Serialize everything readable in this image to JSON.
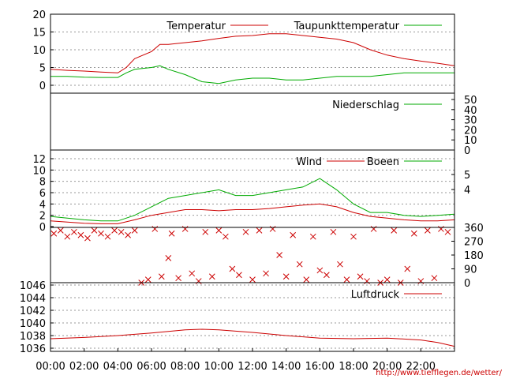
{
  "footer_url": "http://www.tiefflegen.de/wetter/",
  "x_axis": {
    "labels": [
      "00:00",
      "02:00",
      "04:00",
      "06:00",
      "08:00",
      "10:00",
      "12:00",
      "14:00",
      "16:00",
      "18:00",
      "20:00",
      "22:00"
    ],
    "range_hours": [
      0,
      24
    ]
  },
  "colors": {
    "red": "#cc0000",
    "green": "#00aa00",
    "grid": "#999999"
  },
  "chart_data": [
    {
      "type": "line",
      "panel": "temperature",
      "ylim": [
        -2,
        20
      ],
      "yticks": [
        "0",
        "5",
        "10",
        "15",
        "20"
      ],
      "grid": true,
      "legend_placement": "top-right",
      "x": [
        0,
        1,
        2,
        3,
        4,
        4.5,
        5,
        6,
        6.5,
        7,
        8,
        9,
        10,
        11,
        12,
        13,
        14,
        15,
        16,
        17,
        18,
        19,
        20,
        21,
        22,
        23,
        24
      ],
      "series": [
        {
          "name": "Temperatur",
          "color": "red",
          "values": [
            4.5,
            4.2,
            4.0,
            3.7,
            3.5,
            5.0,
            7.5,
            9.5,
            11.5,
            11.5,
            12.0,
            12.5,
            13.2,
            13.8,
            14.0,
            14.5,
            14.5,
            14.0,
            13.5,
            13.0,
            12.0,
            10.0,
            8.5,
            7.5,
            6.8,
            6.2,
            5.5
          ]
        },
        {
          "name": "Taupunkttemperatur",
          "color": "green",
          "values": [
            2.5,
            2.5,
            2.3,
            2.2,
            2.2,
            3.5,
            4.5,
            5.0,
            5.5,
            4.5,
            3.0,
            1.0,
            0.5,
            1.5,
            2.0,
            2.0,
            1.5,
            1.5,
            2.0,
            2.5,
            2.5,
            2.5,
            3.0,
            3.5,
            3.5,
            3.5,
            3.5
          ]
        }
      ]
    },
    {
      "type": "line",
      "panel": "precipitation",
      "ylim": [
        0,
        60
      ],
      "yticks_right": [
        "0",
        "10",
        "20",
        "30",
        "40",
        "50"
      ],
      "grid": false,
      "legend_placement": "top-right",
      "x": [
        0,
        24
      ],
      "series": [
        {
          "name": "Niederschlag",
          "color": "green",
          "values": [
            0,
            0
          ]
        }
      ]
    },
    {
      "type": "line",
      "panel": "wind",
      "ylim": [
        0,
        12
      ],
      "yticks": [
        "0",
        "2",
        "4",
        "6",
        "8",
        "10",
        "12"
      ],
      "yticks_right": [
        "4",
        "5"
      ],
      "grid": true,
      "legend_placement": "top-right",
      "x": [
        0,
        1,
        2,
        3,
        4,
        5,
        6,
        7,
        8,
        9,
        10,
        11,
        12,
        13,
        14,
        15,
        16,
        17,
        18,
        19,
        20,
        21,
        22,
        23,
        24
      ],
      "series": [
        {
          "name": "Wind",
          "color": "red",
          "values": [
            1,
            0.8,
            0.6,
            0.5,
            0.5,
            1.2,
            2.0,
            2.5,
            3.0,
            3.0,
            2.8,
            3.0,
            3.0,
            3.2,
            3.5,
            3.8,
            4.0,
            3.5,
            2.5,
            1.8,
            1.5,
            1.2,
            1.0,
            1.0,
            1.2
          ]
        },
        {
          "name": "Boeen",
          "color": "green",
          "values": [
            1.8,
            1.5,
            1.2,
            1.0,
            1.0,
            2.0,
            3.5,
            5.0,
            5.5,
            6.0,
            6.5,
            5.5,
            5.5,
            6.0,
            6.5,
            7.0,
            8.5,
            6.5,
            4.0,
            2.5,
            2.5,
            2.0,
            1.8,
            2.0,
            2.2
          ]
        }
      ]
    },
    {
      "type": "scatter",
      "panel": "wind_direction",
      "ylim": [
        0,
        360
      ],
      "yticks_right": [
        "0",
        "90",
        "180",
        "270",
        "360"
      ],
      "marker": "x",
      "color": "red",
      "x": [
        0.2,
        0.6,
        1.0,
        1.4,
        1.8,
        2.2,
        2.6,
        3.0,
        3.4,
        3.8,
        4.2,
        4.6,
        5.0,
        5.4,
        5.8,
        6.2,
        6.6,
        7.0,
        7.2,
        7.6,
        8.0,
        8.4,
        8.8,
        9.2,
        9.6,
        10.0,
        10.4,
        10.8,
        11.2,
        11.6,
        12.0,
        12.4,
        12.8,
        13.2,
        13.6,
        14.0,
        14.4,
        14.8,
        15.2,
        15.6,
        16.0,
        16.4,
        16.8,
        17.2,
        17.6,
        18.0,
        18.4,
        18.8,
        19.2,
        19.6,
        20.0,
        20.4,
        20.8,
        21.2,
        21.6,
        22.0,
        22.4,
        22.8,
        23.2,
        23.6
      ],
      "y": [
        320,
        340,
        300,
        330,
        310,
        290,
        340,
        320,
        300,
        340,
        330,
        310,
        340,
        0,
        20,
        350,
        40,
        160,
        320,
        30,
        350,
        60,
        10,
        330,
        40,
        340,
        300,
        90,
        50,
        330,
        20,
        340,
        60,
        350,
        180,
        40,
        310,
        120,
        20,
        300,
        80,
        50,
        330,
        120,
        20,
        300,
        40,
        10,
        350,
        0,
        20,
        340,
        0,
        90,
        320,
        10,
        340,
        30,
        350,
        330
      ]
    },
    {
      "type": "line",
      "panel": "pressure",
      "ylim": [
        1035.5,
        1046
      ],
      "yticks": [
        "1036",
        "1038",
        "1040",
        "1042",
        "1044",
        "1046"
      ],
      "grid": true,
      "legend_placement": "top-right",
      "x": [
        0,
        2,
        4,
        6,
        8,
        9,
        10,
        12,
        14,
        16,
        18,
        20,
        22,
        23,
        24
      ],
      "series": [
        {
          "name": "Luftdruck",
          "color": "red",
          "values": [
            1037.5,
            1037.7,
            1038.0,
            1038.4,
            1038.9,
            1039.0,
            1038.9,
            1038.5,
            1038.0,
            1037.6,
            1037.5,
            1037.6,
            1037.3,
            1036.9,
            1036.3
          ]
        }
      ]
    }
  ]
}
